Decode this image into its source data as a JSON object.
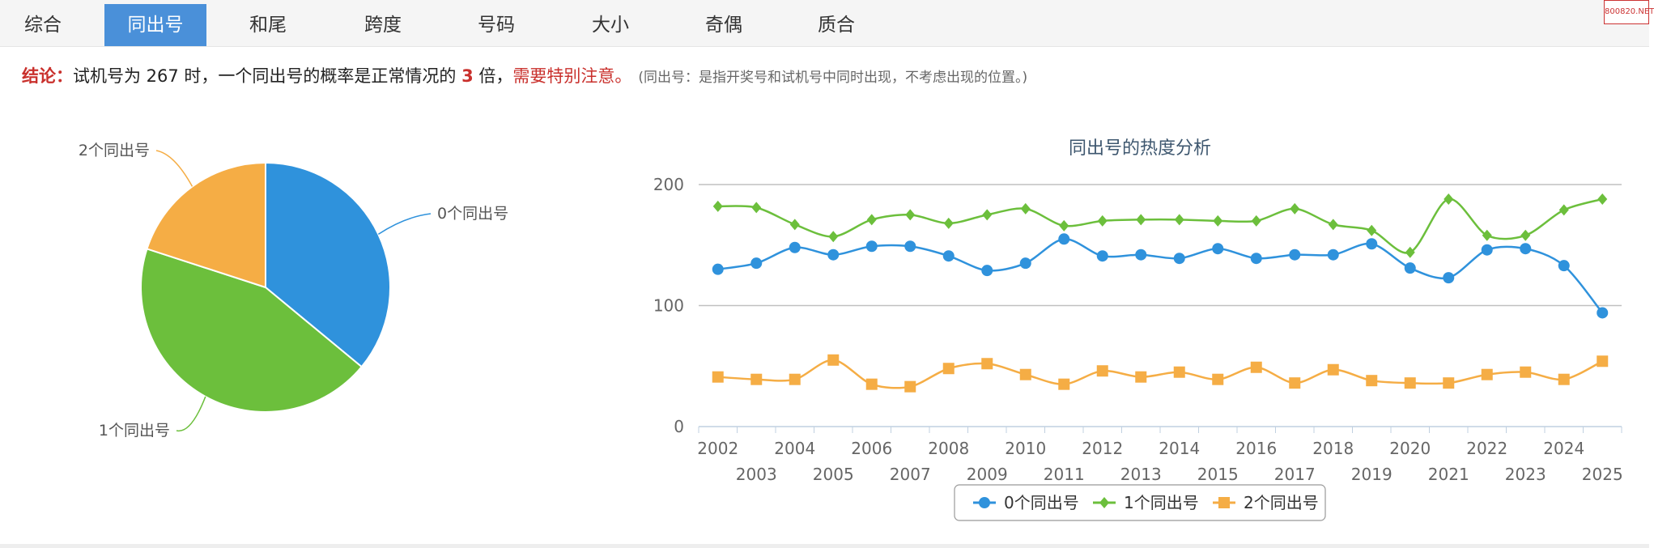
{
  "tabs": [
    "综合",
    "同出号",
    "和尾",
    "跨度",
    "号码",
    "大小",
    "奇偶",
    "质合"
  ],
  "active_tab": 1,
  "watermark": "800820.NET",
  "conclusion": {
    "label": "结论：",
    "text1": "试机号为 267 时，一个同出号的概率是正常情况的 ",
    "multiple": "3",
    "text2": " 倍，",
    "warning": "需要特别注意。",
    "note": "(同出号：是指开奖号和试机号中同时出现，不考虑出现的位置。)"
  },
  "colors": {
    "s0": "#2f92dc",
    "s1": "#6cbf3c",
    "s2": "#f5ad45"
  },
  "chart_data": [
    {
      "type": "pie",
      "labels": [
        "0个同出号",
        "1个同出号",
        "2个同出号"
      ],
      "values": [
        36,
        44,
        20
      ]
    },
    {
      "type": "line",
      "title": "同出号的热度分析",
      "ylim": [
        0,
        200
      ],
      "yticks": [
        0,
        100,
        200
      ],
      "x": [
        "2002",
        "2003",
        "2004",
        "2005",
        "2006",
        "2007",
        "2008",
        "2009",
        "2010",
        "2011",
        "2012",
        "2013",
        "2014",
        "2015",
        "2016",
        "2017",
        "2018",
        "2019",
        "2020",
        "2021",
        "2022",
        "2023",
        "2024",
        "2025"
      ],
      "series": [
        {
          "name": "0个同出号",
          "marker": "circle",
          "values": [
            130,
            135,
            148,
            142,
            149,
            149,
            141,
            129,
            135,
            155,
            141,
            142,
            139,
            147,
            139,
            142,
            142,
            151,
            131,
            123,
            146,
            147,
            133,
            94
          ]
        },
        {
          "name": "1个同出号",
          "marker": "diamond",
          "values": [
            182,
            181,
            167,
            157,
            171,
            175,
            168,
            175,
            180,
            166,
            170,
            171,
            171,
            170,
            170,
            180,
            167,
            162,
            144,
            188,
            158,
            158,
            179,
            188
          ]
        },
        {
          "name": "2个同出号",
          "marker": "square",
          "values": [
            41,
            39,
            39,
            55,
            35,
            33,
            48,
            52,
            43,
            35,
            46,
            41,
            45,
            39,
            49,
            36,
            47,
            38,
            36,
            36,
            43,
            45,
            39,
            54
          ]
        }
      ],
      "legend": "bottom",
      "grid": true
    }
  ]
}
